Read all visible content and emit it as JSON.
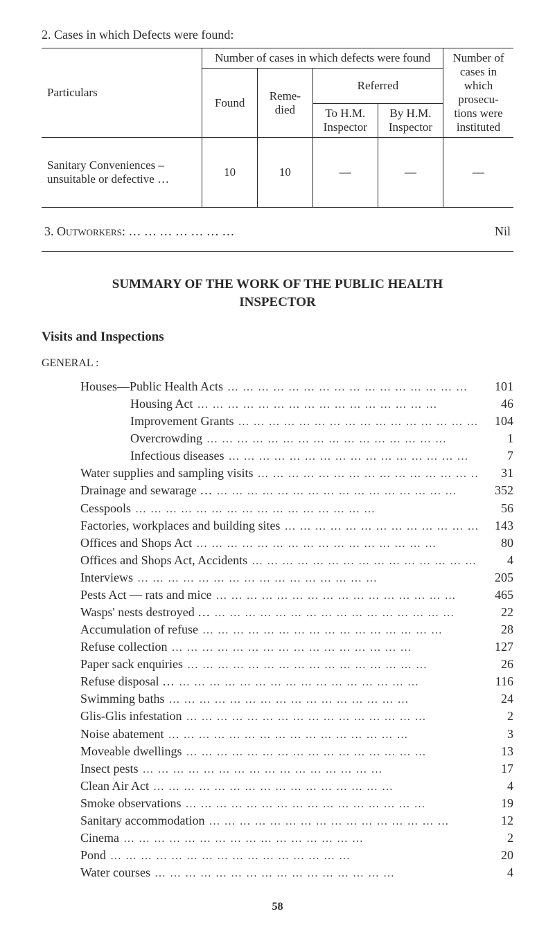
{
  "section2": {
    "heading": "2.   Cases in which Defects were found:",
    "table": {
      "col_particulars": "Particulars",
      "col_group": "Number of cases in which defects were found",
      "col_found": "Found",
      "col_remedied": "Reme-\ndied",
      "col_referred": "Referred",
      "col_to_hm": "To H.M. Inspector",
      "col_by_hm": "By H.M. Inspector",
      "col_prosec": "Number of cases in which prosecu-tions were instituted",
      "row": {
        "label": "Sanitary Conveniences – unsuitable or defective       …",
        "found": "10",
        "remedied": "10",
        "to_hm": "—",
        "by_hm": "—",
        "prosec": "—"
      }
    }
  },
  "section3": {
    "label": "3.   Outworkers:   …      …      …      …      …      …      …",
    "value": "Nil"
  },
  "summary": {
    "line1": "SUMMARY  OF  THE  WORK  OF  THE  PUBLIC  HEALTH",
    "line2": "INSPECTOR"
  },
  "visits_heading": "Visits and Inspections",
  "general_label": "GENERAL :",
  "items": [
    {
      "label": "Houses—Public Health Acts",
      "indent": 0,
      "value": "101"
    },
    {
      "label": "Housing Act",
      "indent": 1,
      "value": "46"
    },
    {
      "label": "Improvement Grants",
      "indent": 1,
      "value": "104"
    },
    {
      "label": "Overcrowding",
      "indent": 1,
      "value": "1"
    },
    {
      "label": "Infectious diseases",
      "indent": 1,
      "value": "7"
    },
    {
      "label": "Water supplies and sampling visits",
      "indent": 0,
      "value": "31"
    },
    {
      "label": "Drainage and sewarage …",
      "indent": 0,
      "value": "352"
    },
    {
      "label": "Cesspools",
      "indent": 0,
      "value": "56"
    },
    {
      "label": "Factories, workplaces and building sites",
      "indent": 0,
      "value": "143"
    },
    {
      "label": "Offices and Shops Act",
      "indent": 0,
      "value": "80"
    },
    {
      "label": "Offices and Shops Act, Accidents",
      "indent": 0,
      "value": "4"
    },
    {
      "label": "Interviews",
      "indent": 0,
      "value": "205"
    },
    {
      "label": "Pests Act — rats and mice",
      "indent": 0,
      "value": "465"
    },
    {
      "label": "Wasps' nests destroyed …",
      "indent": 0,
      "value": "22"
    },
    {
      "label": "Accumulation of refuse",
      "indent": 0,
      "value": "28"
    },
    {
      "label": "Refuse collection",
      "indent": 0,
      "value": "127"
    },
    {
      "label": "Paper sack enquiries",
      "indent": 0,
      "value": "26"
    },
    {
      "label": "Refuse disposal …",
      "indent": 0,
      "value": "116"
    },
    {
      "label": "Swimming baths",
      "indent": 0,
      "value": "24"
    },
    {
      "label": "Glis-Glis infestation",
      "indent": 0,
      "value": "2"
    },
    {
      "label": "Noise abatement",
      "indent": 0,
      "value": "3"
    },
    {
      "label": "Moveable dwellings",
      "indent": 0,
      "value": "13"
    },
    {
      "label": "Insect pests",
      "indent": 0,
      "value": "17"
    },
    {
      "label": "Clean Air Act",
      "indent": 0,
      "value": "4"
    },
    {
      "label": "Smoke observations",
      "indent": 0,
      "value": "19"
    },
    {
      "label": "Sanitary accommodation",
      "indent": 0,
      "value": "12"
    },
    {
      "label": "Cinema",
      "indent": 0,
      "value": "2"
    },
    {
      "label": "Pond",
      "indent": 0,
      "value": "20"
    },
    {
      "label": "Water courses",
      "indent": 0,
      "value": "4"
    }
  ],
  "page_number": "58"
}
